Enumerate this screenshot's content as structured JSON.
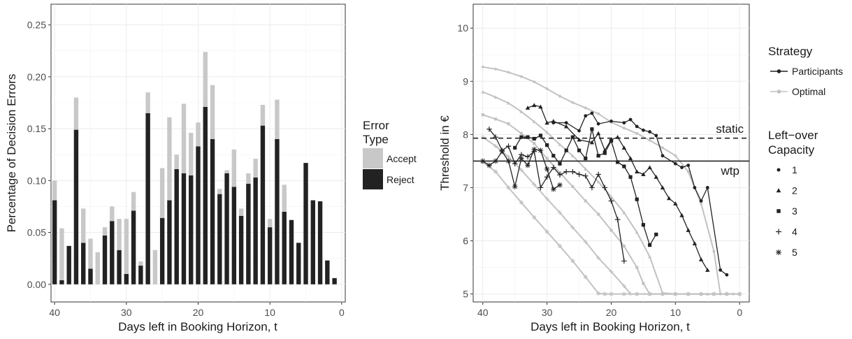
{
  "chart_data": [
    {
      "type": "bar",
      "stacked": true,
      "xlabel": "Days left in Booking Horizon, t",
      "ylabel": "Percentage of Decision Errors",
      "xlim": [
        40.5,
        -0.5
      ],
      "ylim": [
        -0.017,
        0.27
      ],
      "xticks": [
        "40",
        "30",
        "20",
        "10",
        "0"
      ],
      "yticks": [
        "0.00",
        "0.05",
        "0.10",
        "0.15",
        "0.20",
        "0.25"
      ],
      "grid": true,
      "legend": {
        "title": [
          "Error",
          "Type"
        ],
        "placement": "right",
        "entries": [
          {
            "name": "Accept",
            "color": "#c8c8c8"
          },
          {
            "name": "Reject",
            "color": "#222222"
          }
        ]
      },
      "x": [
        40,
        39,
        38,
        37,
        36,
        35,
        34,
        33,
        32,
        31,
        30,
        29,
        28,
        27,
        26,
        25,
        24,
        23,
        22,
        21,
        20,
        19,
        18,
        17,
        16,
        15,
        14,
        13,
        12,
        11,
        10,
        9,
        8,
        7,
        6,
        5,
        4,
        3,
        2,
        1
      ],
      "series": [
        {
          "name": "Reject",
          "values": [
            0.081,
            0.004,
            0.037,
            0.149,
            0.04,
            0.015,
            0.0,
            0.047,
            0.061,
            0.033,
            0.01,
            0.071,
            0.018,
            0.165,
            0.0,
            0.064,
            0.081,
            0.111,
            0.107,
            0.105,
            0.133,
            0.171,
            0.14,
            0.087,
            0.107,
            0.094,
            0.066,
            0.097,
            0.103,
            0.153,
            0.055,
            0.14,
            0.07,
            0.062,
            0.04,
            0.117,
            0.081,
            0.08,
            0.023,
            0.006
          ]
        },
        {
          "name": "Accept",
          "values": [
            0.019,
            0.05,
            0.0,
            0.031,
            0.033,
            0.029,
            0.031,
            0.008,
            0.014,
            0.03,
            0.053,
            0.018,
            0.004,
            0.02,
            0.033,
            0.048,
            0.08,
            0.014,
            0.067,
            0.041,
            0.023,
            0.053,
            0.052,
            0.005,
            0.003,
            0.036,
            0.007,
            0.01,
            0.018,
            0.02,
            0.008,
            0.038,
            0.026,
            0.0,
            0.0,
            0.0,
            0.0,
            0.0,
            0.0,
            0.0
          ]
        }
      ]
    },
    {
      "type": "line",
      "xlabel": "Days left in Booking Horizon, t",
      "ylabel": "Threshold in €",
      "xlim": [
        41.5,
        -1.5
      ],
      "ylim": [
        4.85,
        10.45
      ],
      "xticks": [
        "40",
        "30",
        "20",
        "10",
        "0"
      ],
      "yticks": [
        "5",
        "6",
        "7",
        "8",
        "9",
        "10"
      ],
      "grid": true,
      "hlines": [
        {
          "y": 7.93,
          "label": "static",
          "style": "dashed"
        },
        {
          "y": 7.5,
          "label": "wtp",
          "style": "solid"
        }
      ],
      "legend_strategy": {
        "title": "Strategy",
        "entries": [
          {
            "name": "Participants",
            "color": "#222222"
          },
          {
            "name": "Optimal",
            "color": "#c2c2c2"
          }
        ]
      },
      "legend_capacity": {
        "title": [
          "Left−over",
          "Capacity"
        ],
        "entries": [
          {
            "name": "1",
            "shape": "dot"
          },
          {
            "name": "2",
            "shape": "triangle"
          },
          {
            "name": "3",
            "shape": "square"
          },
          {
            "name": "4",
            "shape": "plus"
          },
          {
            "name": "5",
            "shape": "asterisk"
          }
        ]
      },
      "optimal": [
        {
          "capacity": "1",
          "x": [
            40,
            38,
            36,
            34,
            32,
            30,
            28,
            26,
            24,
            22,
            20,
            18,
            16,
            14,
            12,
            10,
            8,
            6,
            4,
            3,
            2,
            1,
            0
          ],
          "y": [
            9.27,
            9.23,
            9.17,
            9.09,
            8.99,
            8.86,
            8.72,
            8.6,
            8.5,
            8.39,
            8.23,
            8.12,
            8.02,
            7.89,
            7.75,
            7.6,
            7.3,
            6.7,
            5.8,
            5.0,
            5.0,
            5.0,
            5.0
          ]
        },
        {
          "capacity": "2",
          "x": [
            40,
            38,
            36,
            34,
            32,
            30,
            28,
            26,
            24,
            22,
            20,
            18,
            16,
            14,
            12,
            10,
            8,
            6,
            5,
            4,
            2,
            0
          ],
          "y": [
            8.8,
            8.7,
            8.59,
            8.43,
            8.24,
            8.04,
            7.81,
            7.6,
            7.35,
            7.11,
            6.83,
            6.53,
            6.16,
            5.7,
            5.02,
            5.0,
            5.0,
            5.0,
            5.0,
            5.0,
            5.0,
            5.0
          ]
        },
        {
          "capacity": "3",
          "x": [
            40,
            38,
            36,
            34,
            32,
            30,
            28,
            26,
            24,
            22,
            20,
            18,
            16,
            15,
            14,
            12,
            10,
            8,
            6,
            4,
            2,
            0
          ],
          "y": [
            8.37,
            8.29,
            8.2,
            8.02,
            7.83,
            7.55,
            7.28,
            7.02,
            6.75,
            6.5,
            6.2,
            5.9,
            5.5,
            5.2,
            5.0,
            5.0,
            5.0,
            5.0,
            5.0,
            5.0,
            5.0,
            5.0
          ]
        },
        {
          "capacity": "4",
          "x": [
            40,
            38,
            36,
            34,
            32,
            30,
            28,
            26,
            24,
            22,
            20,
            18,
            17,
            16,
            14,
            12,
            10,
            8,
            6,
            4,
            2,
            0
          ],
          "y": [
            7.95,
            7.78,
            7.58,
            7.33,
            7.06,
            6.79,
            6.53,
            6.25,
            5.98,
            5.68,
            5.42,
            5.15,
            5.0,
            5.0,
            5.0,
            5.0,
            5.0,
            5.0,
            5.0,
            5.0,
            5.0,
            5.0
          ]
        },
        {
          "capacity": "5",
          "x": [
            40,
            38,
            36,
            34,
            32,
            30,
            28,
            26,
            24,
            22,
            21,
            20,
            18,
            16,
            14,
            12,
            10,
            8,
            6,
            4,
            2,
            0
          ],
          "y": [
            7.48,
            7.3,
            7.0,
            6.72,
            6.44,
            6.17,
            5.9,
            5.62,
            5.32,
            5.01,
            5.0,
            5.0,
            5.0,
            5.0,
            5.0,
            5.0,
            5.0,
            5.0,
            5.0,
            5.0,
            5.0,
            5.0
          ]
        }
      ],
      "participants": [
        {
          "capacity": "1",
          "x": [
            29,
            27,
            25,
            24,
            23,
            22,
            20,
            18,
            17,
            16,
            15,
            14,
            13,
            12,
            10,
            9,
            8,
            7,
            6,
            5,
            3,
            2
          ],
          "y": [
            8.22,
            8.22,
            8.07,
            8.35,
            8.4,
            8.2,
            8.25,
            8.22,
            8.28,
            8.15,
            8.08,
            8.05,
            7.98,
            7.6,
            7.45,
            7.38,
            7.42,
            7.0,
            6.75,
            7.0,
            5.45,
            5.36
          ]
        },
        {
          "capacity": "2",
          "x": [
            33,
            32,
            31,
            30,
            29,
            27,
            25,
            23,
            22,
            21,
            20,
            19,
            18,
            17,
            16,
            15,
            14,
            13,
            12,
            11,
            10,
            9,
            8,
            7,
            6,
            5
          ],
          "y": [
            8.5,
            8.55,
            8.52,
            8.22,
            8.25,
            8.15,
            7.9,
            7.85,
            8.02,
            7.7,
            7.9,
            7.95,
            7.75,
            7.55,
            7.3,
            7.25,
            7.38,
            7.2,
            7.0,
            6.8,
            6.7,
            6.48,
            6.2,
            5.95,
            5.65,
            5.45
          ]
        },
        {
          "capacity": "3",
          "x": [
            35,
            34,
            33,
            32,
            31,
            30,
            29,
            28,
            27,
            26,
            25,
            24,
            23,
            22,
            21,
            20,
            19,
            18,
            17,
            16,
            15,
            14,
            13
          ],
          "y": [
            7.75,
            7.95,
            7.95,
            7.92,
            7.98,
            7.8,
            7.6,
            7.45,
            7.7,
            7.95,
            7.7,
            7.55,
            8.1,
            7.6,
            7.65,
            7.88,
            7.48,
            7.4,
            7.2,
            6.78,
            6.3,
            5.92,
            6.12
          ]
        },
        {
          "capacity": "4",
          "x": [
            39,
            38,
            37,
            36,
            35,
            34,
            33,
            32,
            31,
            30,
            29,
            28,
            27,
            26,
            25,
            24,
            23,
            22,
            21,
            20,
            19,
            18
          ],
          "y": [
            8.1,
            7.95,
            7.7,
            7.78,
            7.45,
            7.62,
            7.58,
            7.68,
            7.0,
            7.2,
            7.38,
            7.24,
            7.3,
            7.3,
            7.25,
            7.22,
            7.0,
            7.25,
            7.0,
            6.75,
            6.4,
            5.62
          ]
        },
        {
          "capacity": "5",
          "x": [
            40,
            39,
            38,
            37,
            36,
            35,
            34,
            33,
            32,
            31,
            30,
            29,
            28
          ],
          "y": [
            7.5,
            7.42,
            7.5,
            7.68,
            7.5,
            7.02,
            7.55,
            7.42,
            7.72,
            7.7,
            7.35,
            6.97,
            7.05
          ]
        }
      ]
    }
  ]
}
